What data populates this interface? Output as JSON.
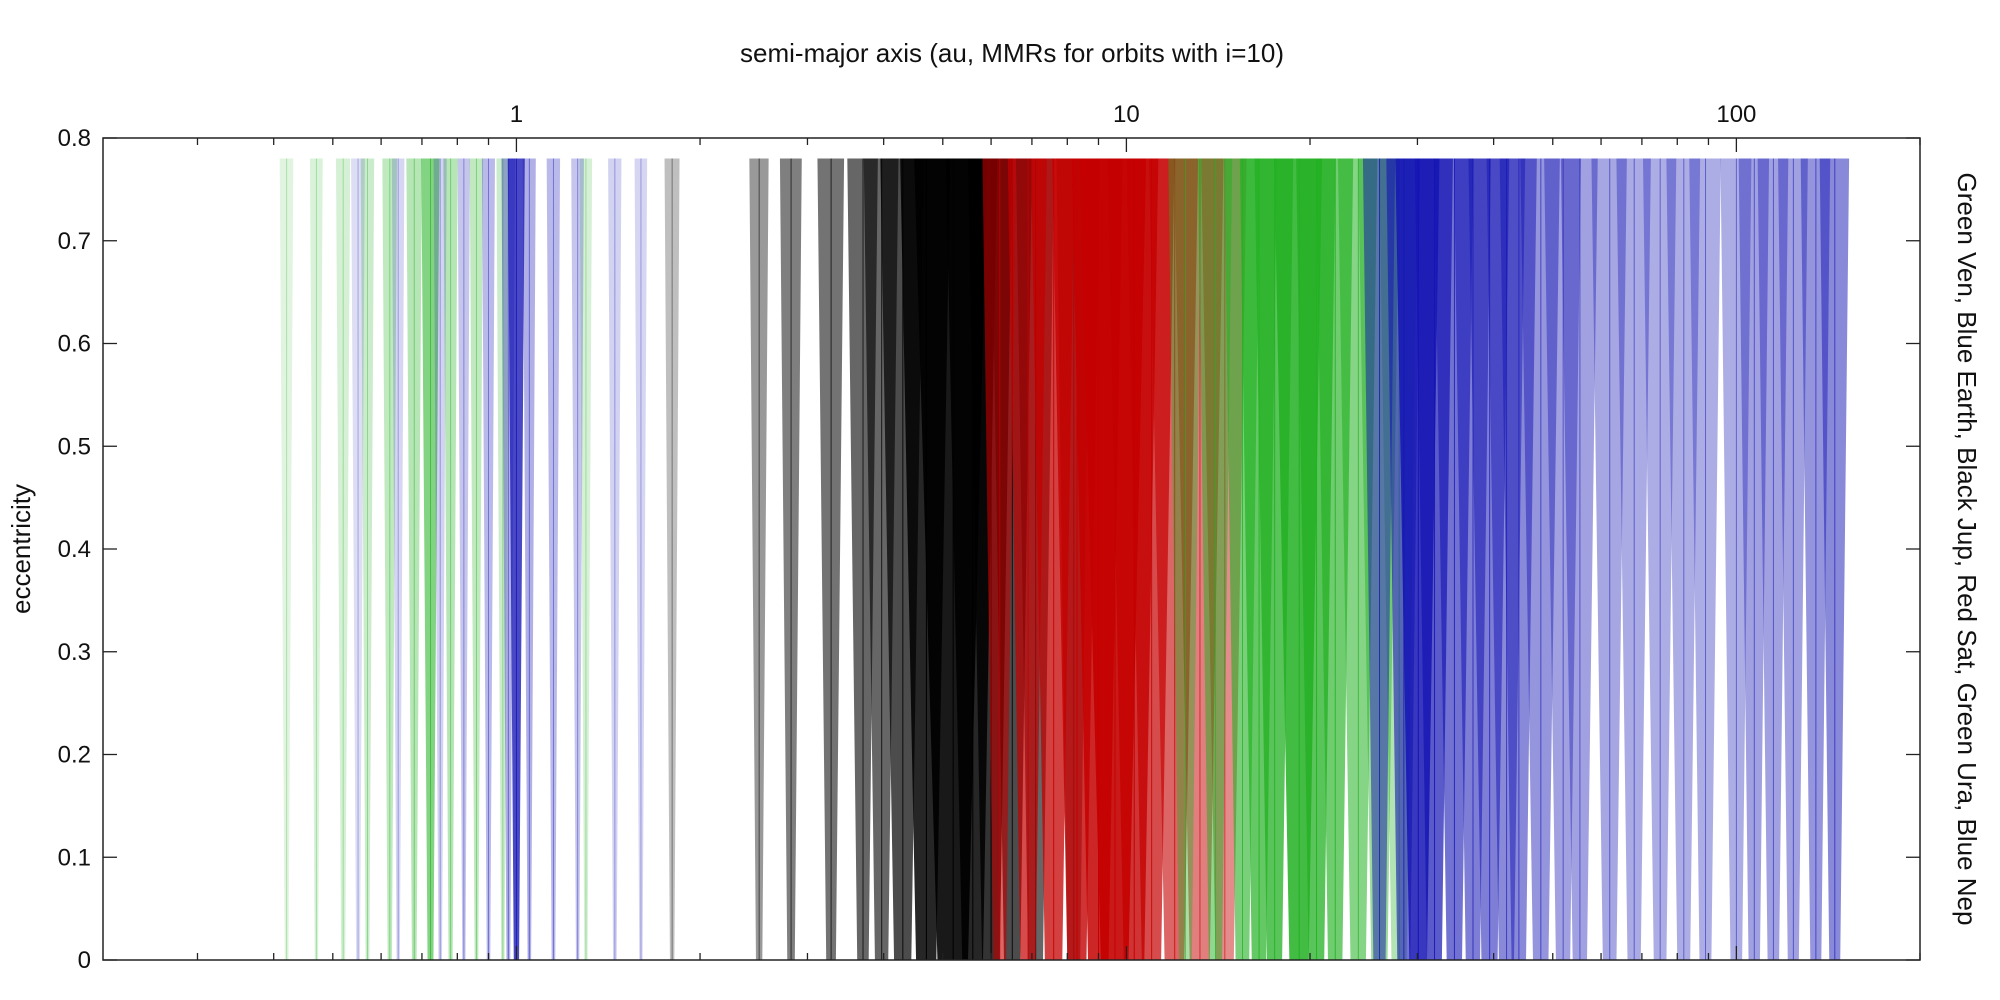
{
  "chart_data": {
    "type": "area",
    "title": "semi-major axis (au, MMRs for orbits with i=10)",
    "xlabel": "semi-major axis (au, MMRs for orbits with i=10)",
    "ylabel": "eccentricity",
    "right_label": "Green Ven, Blue Earth, Black Jup, Red Sat, Green Ura, Blue Nep",
    "x_scale": "log",
    "xlim": [
      0.21,
      200
    ],
    "ylim": [
      0,
      0.8
    ],
    "x_ticks": [
      1,
      10,
      100
    ],
    "x_tick_labels": [
      "1",
      "10",
      "100"
    ],
    "y_ticks": [
      0,
      0.1,
      0.2,
      0.3,
      0.4,
      0.5,
      0.6,
      0.7,
      0.8
    ],
    "y_tick_labels": [
      "0",
      "0.1",
      "0.2",
      "0.3",
      "0.4",
      "0.5",
      "0.6",
      "0.7",
      "0.8"
    ],
    "grid": false,
    "series": [
      {
        "name": "Ven",
        "color": "#2fb52f",
        "values": [
          {
            "a": 0.42,
            "width": 0.003,
            "alpha": 0.15
          },
          {
            "a": 0.47,
            "width": 0.003,
            "alpha": 0.18
          },
          {
            "a": 0.52,
            "width": 0.004,
            "alpha": 0.2
          },
          {
            "a": 0.57,
            "width": 0.004,
            "alpha": 0.25
          },
          {
            "a": 0.62,
            "width": 0.005,
            "alpha": 0.3
          },
          {
            "a": 0.68,
            "width": 0.006,
            "alpha": 0.35
          },
          {
            "a": 0.723,
            "width": 0.008,
            "alpha": 0.6
          },
          {
            "a": 0.78,
            "width": 0.006,
            "alpha": 0.35
          },
          {
            "a": 0.86,
            "width": 0.006,
            "alpha": 0.3
          },
          {
            "a": 0.95,
            "width": 0.006,
            "alpha": 0.25
          },
          {
            "a": 1.3,
            "width": 0.008,
            "alpha": 0.2
          }
        ]
      },
      {
        "name": "Earth",
        "color": "#1c1cb8",
        "values": [
          {
            "a": 0.55,
            "width": 0.004,
            "alpha": 0.15
          },
          {
            "a": 0.64,
            "width": 0.004,
            "alpha": 0.18
          },
          {
            "a": 0.75,
            "width": 0.005,
            "alpha": 0.2
          },
          {
            "a": 0.82,
            "width": 0.005,
            "alpha": 0.25
          },
          {
            "a": 0.9,
            "width": 0.006,
            "alpha": 0.3
          },
          {
            "a": 0.97,
            "width": 0.007,
            "alpha": 0.35
          },
          {
            "a": 1.0,
            "width": 0.01,
            "alpha": 0.8
          },
          {
            "a": 1.05,
            "width": 0.007,
            "alpha": 0.35
          },
          {
            "a": 1.15,
            "width": 0.008,
            "alpha": 0.3
          },
          {
            "a": 1.26,
            "width": 0.008,
            "alpha": 0.25
          },
          {
            "a": 1.45,
            "width": 0.01,
            "alpha": 0.2
          },
          {
            "a": 1.6,
            "width": 0.01,
            "alpha": 0.18
          }
        ]
      },
      {
        "name": "Jup",
        "color": "#000000",
        "values": [
          {
            "a": 1.8,
            "width": 0.015,
            "alpha": 0.25
          },
          {
            "a": 2.5,
            "width": 0.03,
            "alpha": 0.4
          },
          {
            "a": 2.82,
            "width": 0.04,
            "alpha": 0.5
          },
          {
            "a": 3.28,
            "width": 0.06,
            "alpha": 0.55
          },
          {
            "a": 3.7,
            "width": 0.08,
            "alpha": 0.6
          },
          {
            "a": 3.97,
            "width": 0.1,
            "alpha": 0.6
          },
          {
            "a": 4.3,
            "width": 0.14,
            "alpha": 0.7
          },
          {
            "a": 4.7,
            "width": 0.18,
            "alpha": 0.85
          },
          {
            "a": 5.2,
            "width": 0.3,
            "alpha": 0.9
          },
          {
            "a": 5.6,
            "width": 0.22,
            "alpha": 0.85
          },
          {
            "a": 6.0,
            "width": 0.2,
            "alpha": 0.8
          },
          {
            "a": 6.5,
            "width": 0.2,
            "alpha": 0.7
          },
          {
            "a": 7.1,
            "width": 0.2,
            "alpha": 0.6
          },
          {
            "a": 8.2,
            "width": 0.2,
            "alpha": 0.5
          }
        ]
      },
      {
        "name": "Sat",
        "color": "#c40000",
        "values": [
          {
            "a": 6.2,
            "width": 0.15,
            "alpha": 0.6
          },
          {
            "a": 6.9,
            "width": 0.2,
            "alpha": 0.7
          },
          {
            "a": 7.6,
            "width": 0.25,
            "alpha": 0.75
          },
          {
            "a": 8.3,
            "width": 0.3,
            "alpha": 0.8
          },
          {
            "a": 9.0,
            "width": 0.35,
            "alpha": 0.85
          },
          {
            "a": 9.58,
            "width": 0.5,
            "alpha": 0.9
          },
          {
            "a": 10.3,
            "width": 0.4,
            "alpha": 0.8
          },
          {
            "a": 11.0,
            "width": 0.4,
            "alpha": 0.7
          },
          {
            "a": 12.0,
            "width": 0.45,
            "alpha": 0.6
          },
          {
            "a": 13.2,
            "width": 0.5,
            "alpha": 0.5
          },
          {
            "a": 14.5,
            "width": 0.5,
            "alpha": 0.45
          }
        ]
      },
      {
        "name": "Ura",
        "color": "#22b022",
        "values": [
          {
            "a": 12.5,
            "width": 0.3,
            "alpha": 0.4
          },
          {
            "a": 14.0,
            "width": 0.35,
            "alpha": 0.5
          },
          {
            "a": 15.5,
            "width": 0.4,
            "alpha": 0.6
          },
          {
            "a": 16.5,
            "width": 0.45,
            "alpha": 0.7
          },
          {
            "a": 17.5,
            "width": 0.5,
            "alpha": 0.75
          },
          {
            "a": 19.2,
            "width": 0.7,
            "alpha": 0.85
          },
          {
            "a": 20.5,
            "width": 0.6,
            "alpha": 0.75
          },
          {
            "a": 22.0,
            "width": 0.6,
            "alpha": 0.65
          },
          {
            "a": 24.0,
            "width": 0.7,
            "alpha": 0.55
          },
          {
            "a": 26.0,
            "width": 0.8,
            "alpha": 0.45
          },
          {
            "a": 28.0,
            "width": 0.8,
            "alpha": 0.35
          }
        ]
      },
      {
        "name": "Nep",
        "color": "#1414b4",
        "values": [
          {
            "a": 26.0,
            "width": 0.6,
            "alpha": 0.5
          },
          {
            "a": 28.5,
            "width": 0.7,
            "alpha": 0.6
          },
          {
            "a": 30.1,
            "width": 1.0,
            "alpha": 0.85
          },
          {
            "a": 32.0,
            "width": 0.9,
            "alpha": 0.7
          },
          {
            "a": 34.5,
            "width": 1.0,
            "alpha": 0.6
          },
          {
            "a": 37.0,
            "width": 1.0,
            "alpha": 0.55
          },
          {
            "a": 39.4,
            "width": 1.2,
            "alpha": 0.55
          },
          {
            "a": 42.0,
            "width": 1.2,
            "alpha": 0.5
          },
          {
            "a": 44.0,
            "width": 1.2,
            "alpha": 0.5
          },
          {
            "a": 47.8,
            "width": 1.4,
            "alpha": 0.45
          },
          {
            "a": 52.0,
            "width": 1.4,
            "alpha": 0.4
          },
          {
            "a": 55.4,
            "width": 1.5,
            "alpha": 0.4
          },
          {
            "a": 62.0,
            "width": 1.6,
            "alpha": 0.38
          },
          {
            "a": 68.0,
            "width": 1.7,
            "alpha": 0.36
          },
          {
            "a": 75.0,
            "width": 1.8,
            "alpha": 0.35
          },
          {
            "a": 82.0,
            "width": 2.0,
            "alpha": 0.35
          },
          {
            "a": 89.0,
            "width": 2.0,
            "alpha": 0.35
          },
          {
            "a": 100.0,
            "width": 2.2,
            "alpha": 0.35
          },
          {
            "a": 107.0,
            "width": 2.3,
            "alpha": 0.4
          },
          {
            "a": 115.0,
            "width": 2.5,
            "alpha": 0.4
          },
          {
            "a": 124.0,
            "width": 2.6,
            "alpha": 0.4
          },
          {
            "a": 135.0,
            "width": 2.8,
            "alpha": 0.45
          },
          {
            "a": 145.0,
            "width": 3.0,
            "alpha": 0.5
          }
        ]
      }
    ],
    "line_colors": {
      "Ven": "#2fb52f",
      "Earth": "#1c1cb8",
      "Jup": "#000000",
      "Sat": "#c40000",
      "Ura": "#22b022",
      "Nep": "#1414b4"
    },
    "max_eccentricity_drawn": 0.78
  }
}
